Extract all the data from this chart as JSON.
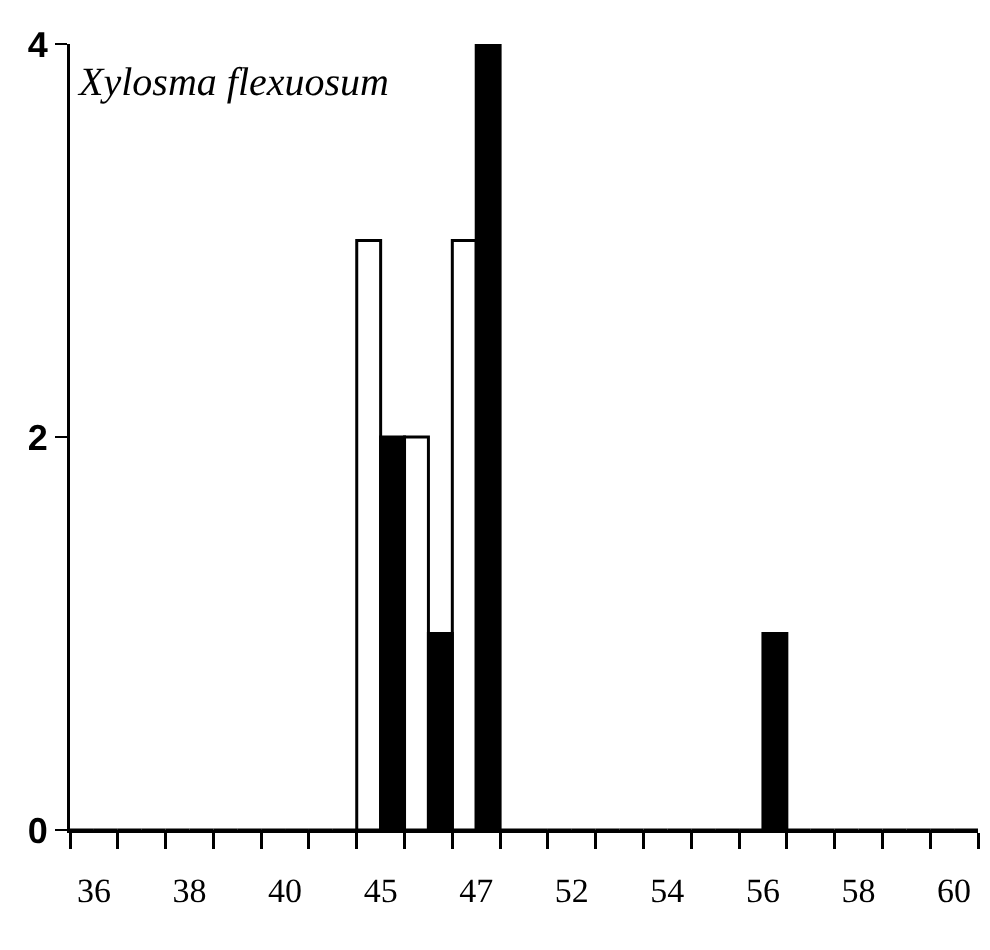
{
  "chart_data": {
    "type": "bar",
    "title": "Xylosma flexuosum",
    "categories": [
      "36",
      null,
      "38",
      null,
      "40",
      null,
      "45",
      null,
      "47",
      null,
      "52",
      null,
      "54",
      null,
      "56",
      null,
      "58",
      null,
      "60"
    ],
    "series": [
      {
        "color": "#ffffff",
        "values": [
          0,
          0,
          0,
          0,
          0,
          0,
          3,
          2,
          3,
          0,
          0,
          0,
          0,
          0,
          0,
          0,
          0,
          0,
          0
        ]
      },
      {
        "color": "#000000",
        "values": [
          0,
          0,
          0,
          0,
          0,
          0,
          2,
          1,
          4,
          0,
          0,
          0,
          0,
          0,
          1,
          0,
          0,
          0,
          0
        ]
      }
    ],
    "ylim": [
      0,
      4
    ],
    "yticks": [
      0,
      2,
      4
    ],
    "grid": false
  }
}
